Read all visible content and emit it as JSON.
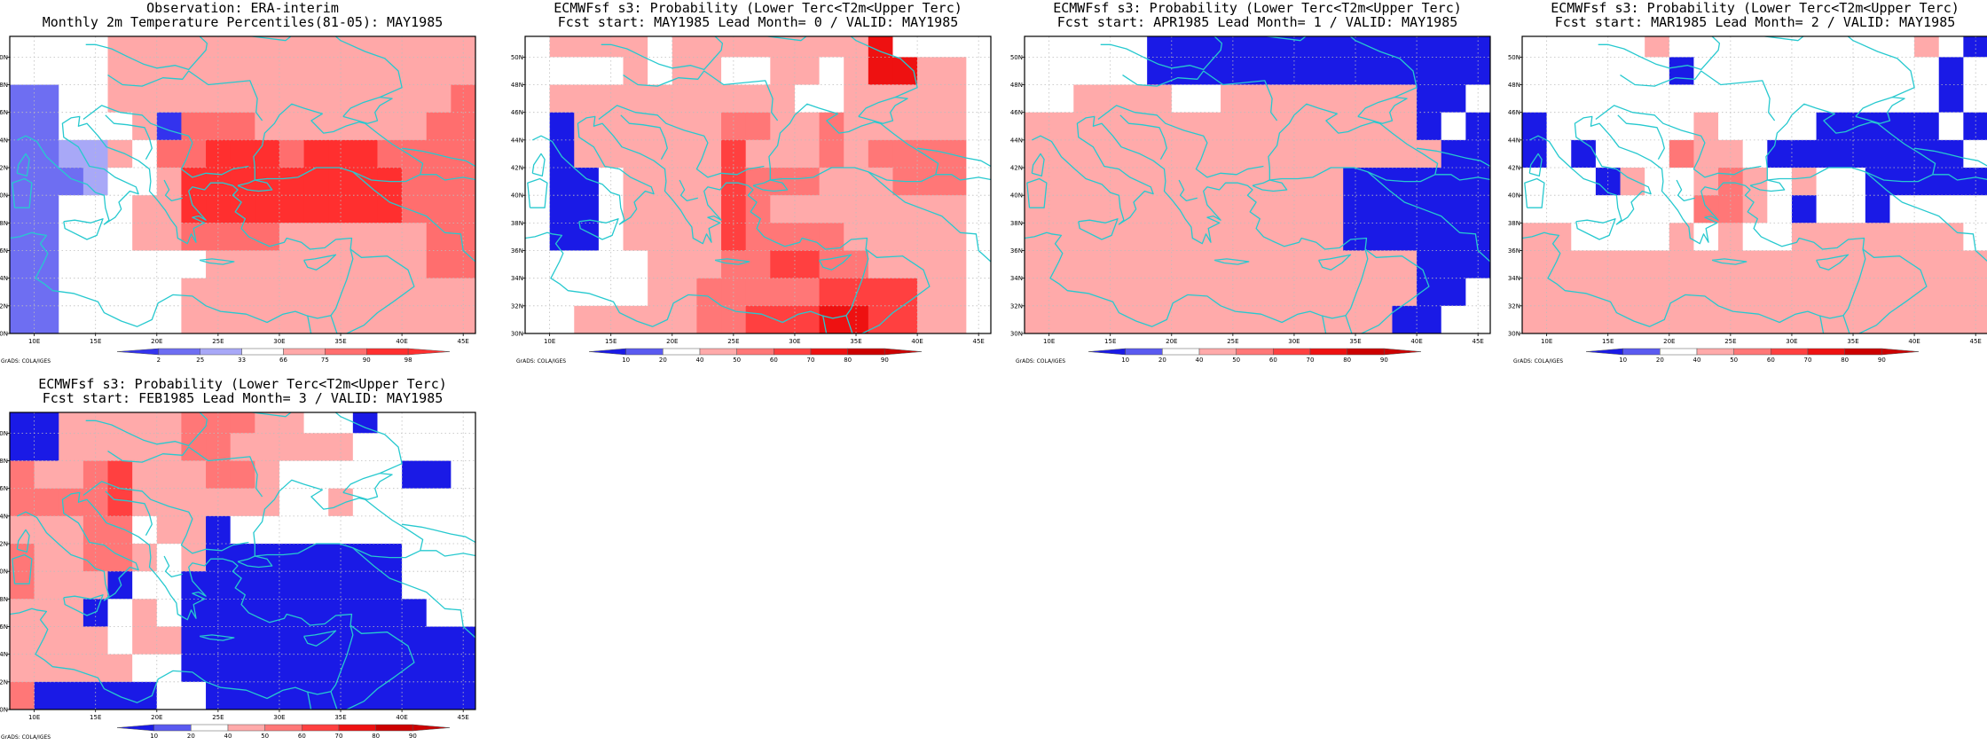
{
  "palette": {
    "obs": {
      "2": "#3333ee",
      "25": "#6e6ef2",
      "33": "#a8a8f7",
      "66": "#ffffff",
      "75": "#ffa8a8",
      "90": "#ff6e6e",
      "98": "#ff2f2f"
    },
    "prob": {
      "10": "#1a1ae6",
      "20": "#5a5af0",
      "40": "#ffffff",
      "50": "#ffaaaa",
      "60": "#ff7777",
      "70": "#ff4040",
      "80": "#ee1111",
      "90": "#cc0000"
    },
    "coast": "#27c9cf",
    "grid": "#bdbdbd"
  },
  "lon_ticks": [
    "10E",
    "15E",
    "20E",
    "25E",
    "30E",
    "35E",
    "40E",
    "45E"
  ],
  "lat_ticks": [
    "30N",
    "32N",
    "34N",
    "36N",
    "38N",
    "40N",
    "42N",
    "44N",
    "46N",
    "48N",
    "50N"
  ],
  "credit": "GrADS: COLA/IGES",
  "panels": [
    {
      "id": "obs",
      "title_lines": [
        "Observation: ERA-interim",
        "Monthly 2m Temperature Percentiles(81-05): MAY1985"
      ],
      "colorbar": {
        "palette": "obs",
        "labels": [
          "2",
          "25",
          "33",
          "66",
          "75",
          "90",
          "98"
        ]
      },
      "chart_data": {
        "type": "heatmap",
        "x": [
          9,
          11,
          13,
          15,
          17,
          19,
          21,
          23,
          25,
          27,
          29,
          31,
          33,
          35,
          37,
          39,
          41,
          43,
          45
        ],
        "y": [
          51,
          49,
          47,
          45,
          43,
          41,
          39,
          37,
          35,
          33,
          31
        ],
        "z": [
          "6666777777777777777",
          "6666777777777777777",
          "2266777777777777778",
          "2266671888777777788",
          "2233768899989998888",
          "2223667999999999888",
          "2266677999999999888",
          "2266677888877777788",
          "2266666677777777788",
          "2266666777777777777",
          "2266666777777777777"
        ],
        "z_codes": {
          "1": "2",
          "2": "25",
          "3": "33",
          "6": "66",
          "7": "75",
          "8": "90",
          "9": "98"
        }
      }
    },
    {
      "id": "lead0",
      "title_lines": [
        "ECMWFsf s3: Probability (Lower Terc<T2m<Upper Terc)",
        "Fcst start: MAY1985   Lead Month= 0 / VALID: MAY1985"
      ],
      "colorbar": {
        "palette": "prob",
        "labels": [
          "10",
          "20",
          "40",
          "50",
          "60",
          "70",
          "80",
          "90"
        ]
      },
      "chart_data": {
        "type": "heatmap",
        "x": [
          9,
          11,
          13,
          15,
          17,
          19,
          21,
          23,
          25,
          27,
          29,
          31,
          33,
          35,
          37,
          39,
          41,
          43,
          45
        ],
        "y": [
          51,
          49,
          47,
          45,
          43,
          41,
          39,
          37,
          35,
          33,
          31
        ],
        "z": [
          "3555535555555583333",
          "3333535533553588553",
          "3555555555533555553",
          "3155555566556555553",
          "3155555575556566663",
          "3113555576665556663",
          "3113555576555555553",
          "3113555576666555553",
          "3333355566776655553",
          "3333355666667777553",
          "3355555667778877553"
        ],
        "z_codes": {
          "1": "10",
          "2": "20",
          "3": "40",
          "5": "50",
          "6": "60",
          "7": "70",
          "8": "80",
          "9": "90"
        }
      }
    },
    {
      "id": "lead1",
      "title_lines": [
        "ECMWFsf s3: Probability (Lower Terc<T2m<Upper Terc)",
        "Fcst start: APR1985   Lead Month= 1 / VALID: MAY1985"
      ],
      "colorbar": {
        "palette": "prob",
        "labels": [
          "10",
          "20",
          "40",
          "50",
          "60",
          "70",
          "80",
          "90"
        ]
      },
      "chart_data": {
        "type": "heatmap",
        "x": [
          9,
          11,
          13,
          15,
          17,
          19,
          21,
          23,
          25,
          27,
          29,
          31,
          33,
          35,
          37,
          39,
          41,
          43,
          45
        ],
        "y": [
          51,
          49,
          47,
          45,
          43,
          41,
          39,
          37,
          35,
          33,
          31
        ],
        "z": [
          "3333311111111111111",
          "3333311111111111111",
          "3355553355555555113",
          "5555555555555555131",
          "5555555555555555511",
          "5555555555555111111",
          "5555555555555111111",
          "5555555555555111111",
          "5555555555555555111",
          "5555555555555555113",
          "5555555555555551133"
        ],
        "z_codes": {
          "1": "10",
          "2": "20",
          "3": "40",
          "5": "50",
          "6": "60",
          "7": "70",
          "8": "80",
          "9": "90"
        }
      }
    },
    {
      "id": "lead2",
      "title_lines": [
        "ECMWFsf s3: Probability (Lower Terc<T2m<Upper Terc)",
        "Fcst start: MAR1985   Lead Month= 2 / VALID: MAY1985"
      ],
      "colorbar": {
        "palette": "prob",
        "labels": [
          "10",
          "20",
          "40",
          "50",
          "60",
          "70",
          "80",
          "90"
        ]
      },
      "chart_data": {
        "type": "heatmap",
        "x": [
          9,
          11,
          13,
          15,
          17,
          19,
          21,
          23,
          25,
          27,
          29,
          31,
          33,
          35,
          37,
          39,
          41,
          43,
          45
        ],
        "y": [
          51,
          49,
          47,
          45,
          43,
          41,
          39,
          37,
          35,
          33,
          31
        ],
        "z": [
          "3333353333333333531",
          "3333331333333333313",
          "3333333333333333313",
          "1333333533331111131",
          "1313336553111111113",
          "3331533565353311111",
          "3333333665313313333",
          "5533335353355555553",
          "5555555555555555555",
          "5555555555555555555",
          "5555555555555555555"
        ],
        "z_codes": {
          "1": "10",
          "2": "20",
          "3": "40",
          "5": "50",
          "6": "60",
          "7": "70",
          "8": "80",
          "9": "90"
        }
      }
    },
    {
      "id": "lead3",
      "title_lines": [
        "ECMWFsf s3: Probability (Lower Terc<T2m<Upper Terc)",
        "Fcst start: FEB1985   Lead Month= 3 / VALID: MAY1985"
      ],
      "colorbar": {
        "palette": "prob",
        "labels": [
          "10",
          "20",
          "40",
          "50",
          "60",
          "70",
          "80",
          "90"
        ]
      },
      "chart_data": {
        "type": "heatmap",
        "x": [
          9,
          11,
          13,
          15,
          17,
          19,
          21,
          23,
          25,
          27,
          29,
          31,
          33,
          35,
          37,
          39,
          41,
          43,
          45
        ],
        "y": [
          51,
          49,
          47,
          45,
          43,
          41,
          39,
          37,
          35,
          33,
          31
        ],
        "z": [
          "1155555666553313333",
          "1155555665555533333",
          "6556755566533333113",
          "6666755555533533333",
          "5556635513333333333",
          "6556653511111111333",
          "6555133111111111333",
          "5551353111111111133",
          "5555355111111111111",
          "5555533111111111111",
          "6111113311111111111"
        ],
        "z_codes": {
          "1": "10",
          "2": "20",
          "3": "40",
          "5": "50",
          "6": "60",
          "7": "70",
          "8": "80",
          "9": "90"
        }
      }
    }
  ]
}
